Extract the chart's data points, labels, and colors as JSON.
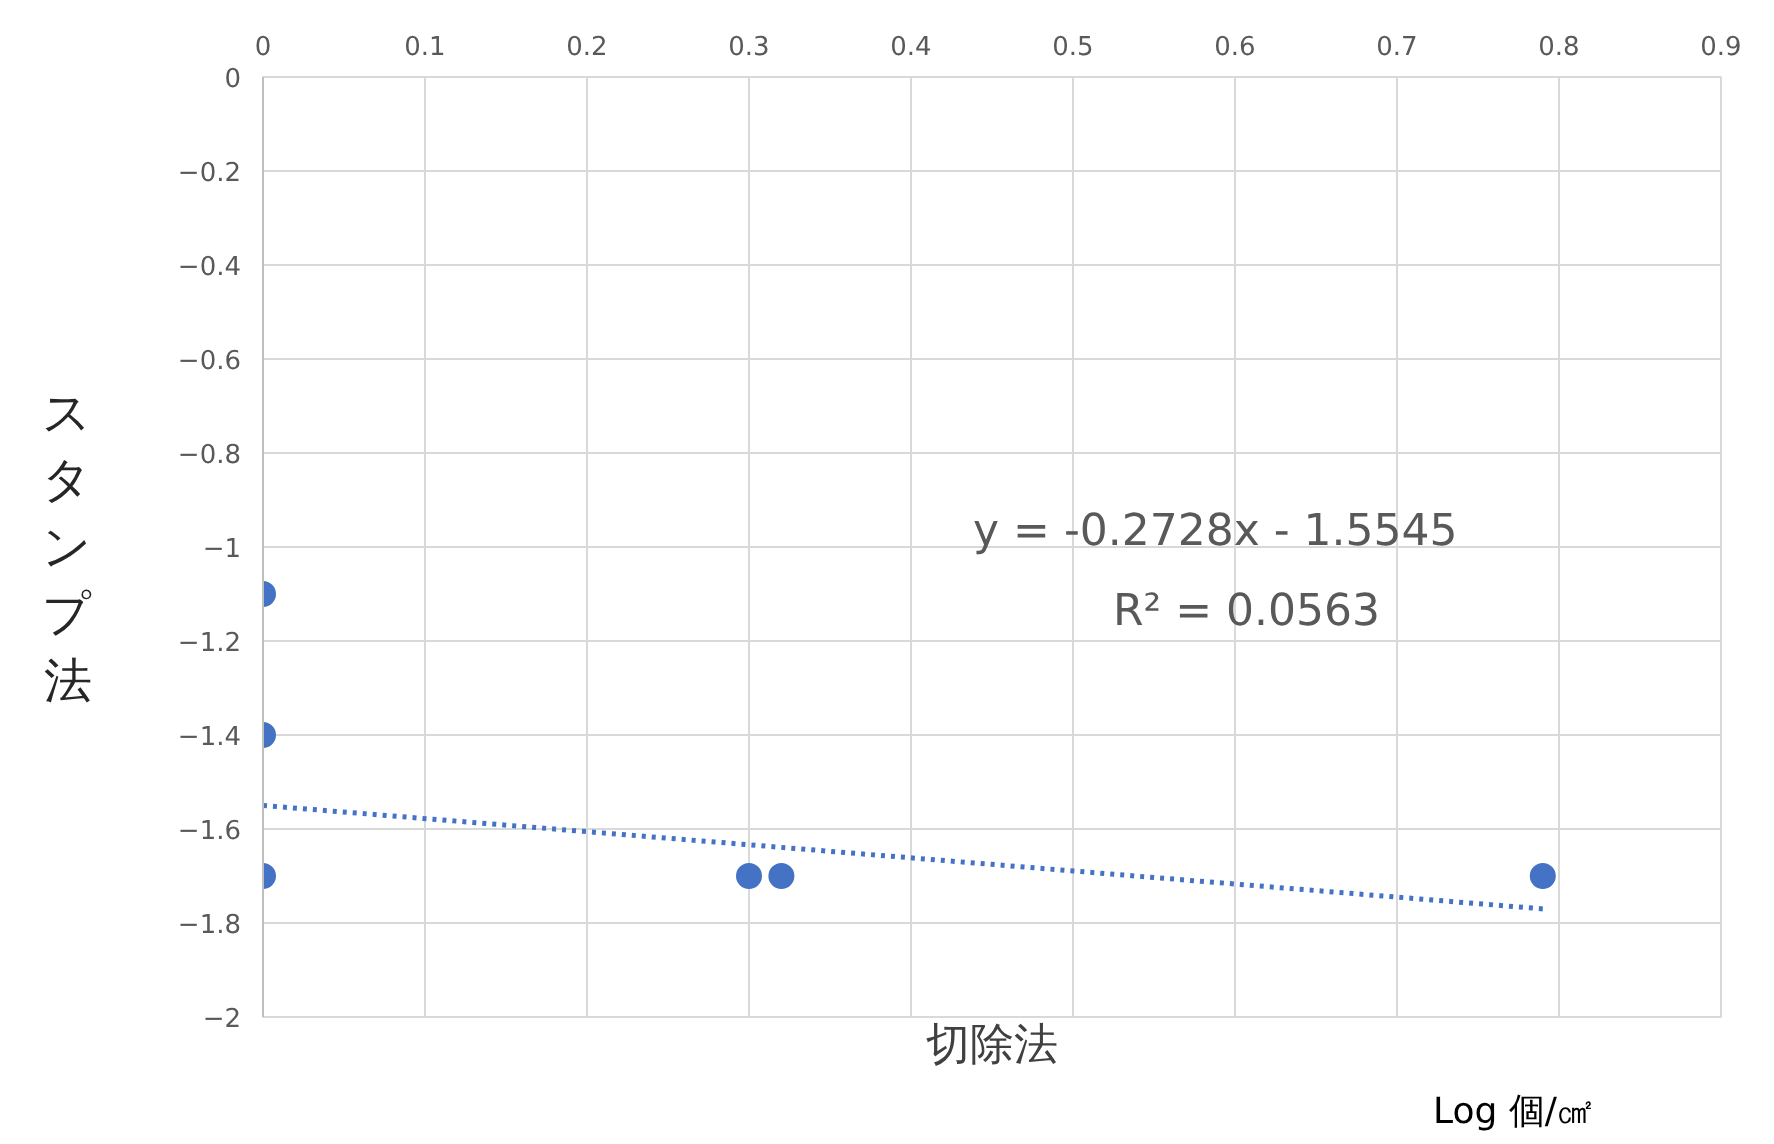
{
  "chart_data": {
    "type": "scatter",
    "xlabel": "切除法",
    "ylabel": "スタンプ法",
    "annotations": [
      "y = -0.2728x - 1.5545",
      "R² = 0.0563",
      "Log 個/㎠"
    ],
    "xlim": [
      0,
      0.9
    ],
    "xticks": [
      0,
      0.1,
      0.2,
      0.3,
      0.4,
      0.5,
      0.6,
      0.7,
      0.8,
      0.9
    ],
    "ylim": [
      -2,
      0
    ],
    "yticks": [
      0,
      -0.2,
      -0.4,
      -0.6,
      -0.8,
      -1,
      -1.2,
      -1.4,
      -1.6,
      -1.8,
      -2
    ],
    "grid": true,
    "marker": "circle",
    "series": [
      {
        "color": "#4472c4",
        "x": [
          0,
          0,
          0,
          0.3,
          0.32,
          0.79
        ],
        "values": [
          -1.1,
          -1.4,
          -1.7,
          -1.7,
          -1.7,
          -1.7
        ]
      },
      {
        "type": "line",
        "line_style": "dotted",
        "marker": "none",
        "color": "#4472c4",
        "x": [
          0,
          0.79
        ],
        "values": [
          -1.55,
          -1.77
        ]
      }
    ]
  }
}
